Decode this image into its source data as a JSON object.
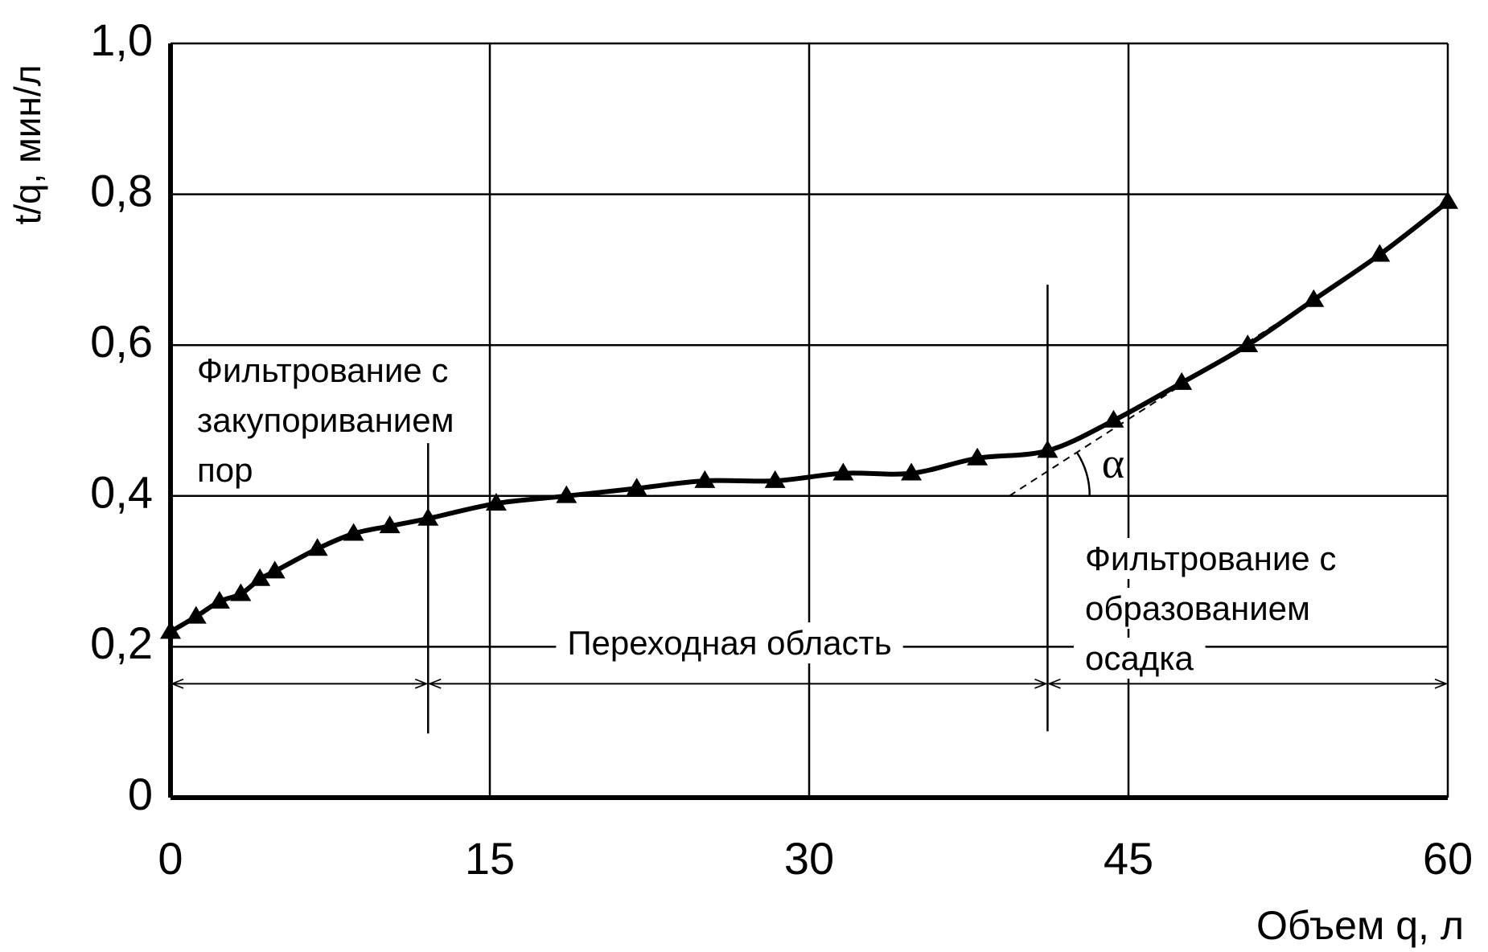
{
  "chart_data": {
    "type": "line",
    "xlabel": "Объем  q, л",
    "ylabel": "t/q, мин/л",
    "xlim": [
      0,
      60
    ],
    "xticks": [
      0,
      15,
      30,
      45,
      60
    ],
    "ylim": [
      0,
      1.0
    ],
    "yticks": [
      0,
      {
        "value": 0.2,
        "label": "0,2"
      },
      {
        "value": 0.4,
        "label": "0,4"
      },
      {
        "value": 0.6,
        "label": "0,6"
      },
      {
        "value": 0.8,
        "label": "0,8"
      },
      {
        "value": 1.0,
        "label": "1,0"
      }
    ],
    "grid": true,
    "series": [
      {
        "color": "#000000",
        "x": [
          0,
          1.2,
          2.3,
          3.3,
          4.2,
          4.9,
          6.9,
          8.6,
          10.3,
          12.1,
          15.3,
          18.6,
          21.9,
          25.1,
          28.4,
          31.6,
          34.8,
          37.9,
          41.2,
          44.3,
          47.5,
          50.6,
          53.7,
          56.8,
          60
        ],
        "values": [
          0.22,
          0.24,
          0.26,
          0.27,
          0.29,
          0.3,
          0.33,
          0.35,
          0.36,
          0.37,
          0.39,
          0.4,
          0.41,
          0.42,
          0.42,
          0.43,
          0.43,
          0.45,
          0.46,
          0.5,
          0.55,
          0.6,
          0.66,
          0.72,
          0.79
        ]
      }
    ],
    "regions": [
      {
        "label_lines": [
          "Фильтрование с",
          "закупориванием",
          "пор"
        ],
        "x": [
          0,
          12.1
        ]
      },
      {
        "label_lines": [
          "Переходная область"
        ],
        "x": [
          12.1,
          41.2
        ]
      },
      {
        "label_lines": [
          "Фильтрование с",
          "образованием",
          "осадка"
        ],
        "x": [
          41.2,
          60
        ]
      }
    ],
    "tangent": {
      "x": [
        39.4,
        53.7
      ],
      "y": [
        0.4,
        0.66
      ]
    },
    "angle_label": "α"
  }
}
